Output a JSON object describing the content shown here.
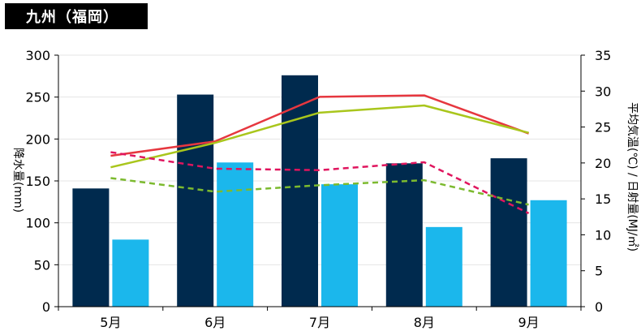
{
  "title": "九州（福岡）",
  "chart_data": {
    "type": "bar",
    "categories": [
      "5月",
      "6月",
      "7月",
      "8月",
      "9月"
    ],
    "ylabel": "降水量(mm)",
    "y2label": "平均気温(℃) / 日射量(MJ/㎡)",
    "ylim": [
      0,
      300
    ],
    "y2lim": [
      0,
      35
    ],
    "yticks": [
      0,
      50,
      100,
      150,
      200,
      250,
      300
    ],
    "y2ticks": [
      0,
      5,
      10,
      15,
      20,
      25,
      30,
      35
    ],
    "grid": true,
    "bar_series": [
      {
        "values": [
          141,
          253,
          276,
          171,
          177
        ],
        "color": "#002a4e",
        "axis": "left"
      },
      {
        "values": [
          80,
          172,
          146,
          95,
          127
        ],
        "color": "#1bb7ec",
        "axis": "left"
      }
    ],
    "line_series": [
      {
        "values": [
          21.0,
          23.0,
          29.2,
          29.4,
          24.1
        ],
        "color": "#e6373f",
        "style": "solid",
        "axis": "right"
      },
      {
        "values": [
          19.4,
          22.8,
          27.0,
          28.0,
          24.2
        ],
        "color": "#a9c61c",
        "style": "solid",
        "axis": "right"
      },
      {
        "values": [
          21.5,
          19.2,
          19.0,
          20.1,
          13.0
        ],
        "color": "#e0155e",
        "style": "dashed",
        "axis": "right"
      },
      {
        "values": [
          17.9,
          16.0,
          16.9,
          17.6,
          14.2
        ],
        "color": "#7cba2f",
        "style": "dashed",
        "axis": "right"
      }
    ]
  }
}
